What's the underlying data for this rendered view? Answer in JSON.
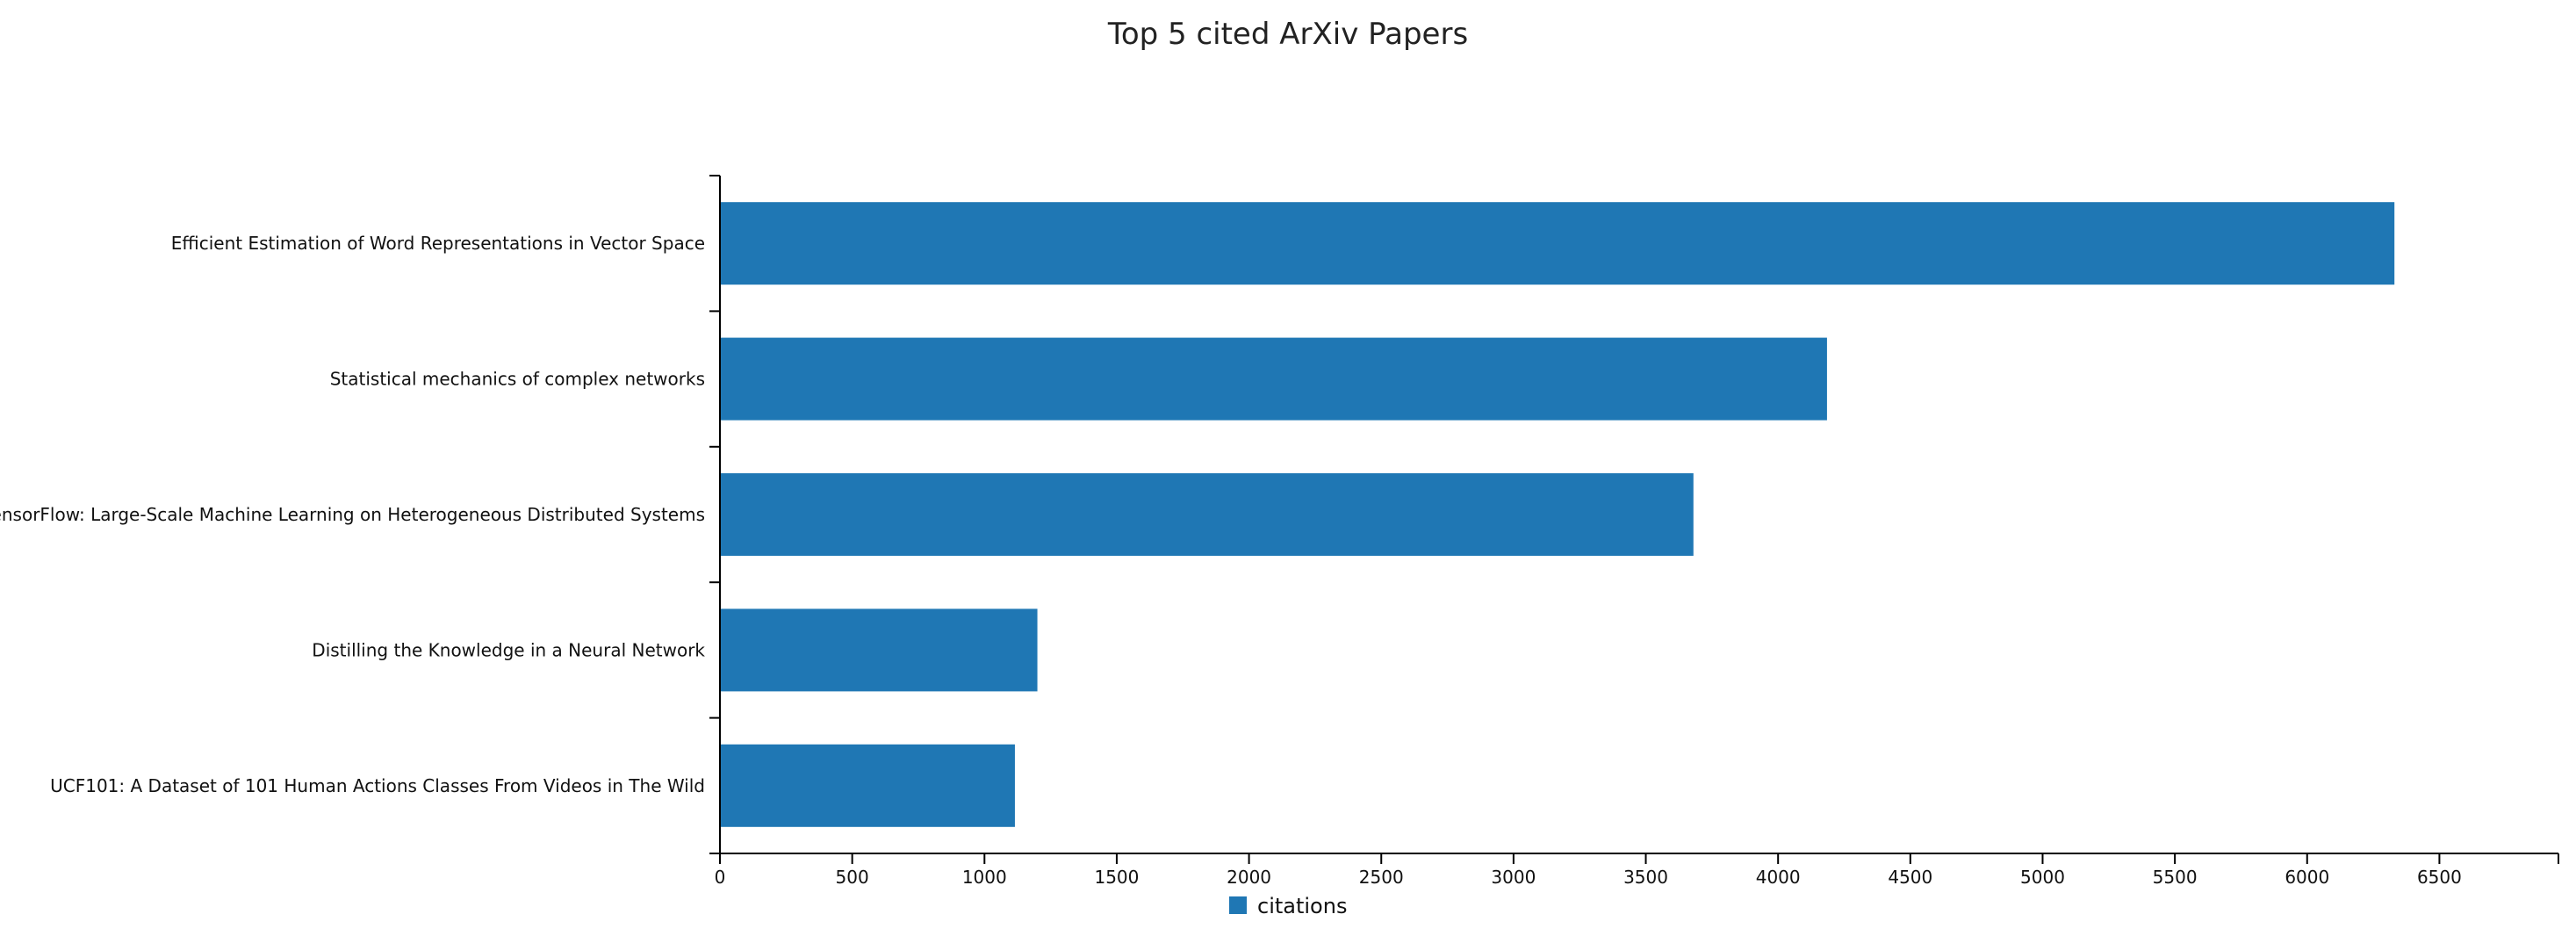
{
  "chart_data": {
    "type": "bar",
    "orientation": "horizontal",
    "title": "Top 5 cited ArXiv Papers",
    "xlabel": "",
    "ylabel": "",
    "categories": [
      "Efficient Estimation of Word Representations in Vector Space",
      "Statistical mechanics of complex networks",
      "TensorFlow: Large-Scale Machine Learning on Heterogeneous Distributed Systems",
      "Distilling the Knowledge in a Neural Network",
      "UCF101: A Dataset of 101 Human Actions Classes From Videos in The Wild"
    ],
    "series": [
      {
        "name": "citations",
        "color": "#1f77b4",
        "values": [
          6330,
          4185,
          3680,
          1200,
          1115
        ]
      }
    ],
    "xlim": [
      0,
      6950
    ],
    "xticks": [
      0,
      500,
      1000,
      1500,
      2000,
      2500,
      3000,
      3500,
      4000,
      4500,
      5000,
      5500,
      6000,
      6500
    ],
    "grid": false,
    "legend": {
      "placement": "bottom-center",
      "entries": [
        "citations"
      ]
    }
  }
}
